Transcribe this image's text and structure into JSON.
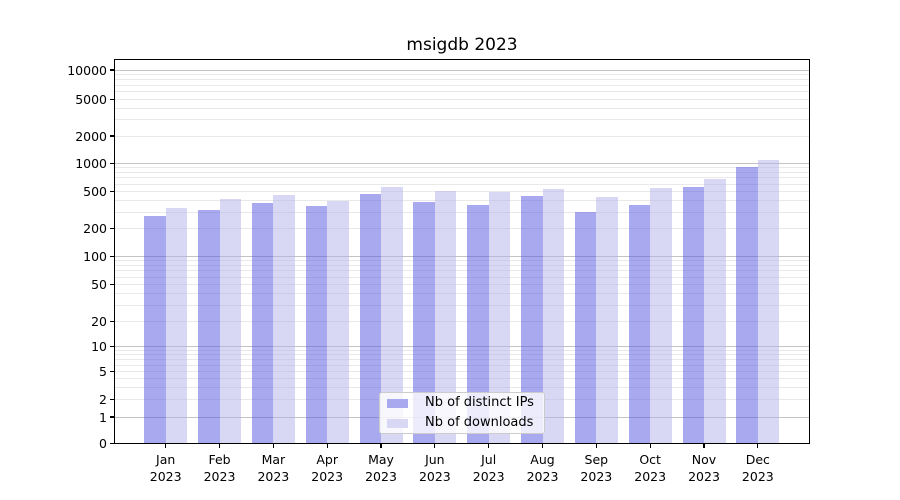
{
  "title": "msigdb 2023",
  "chart_data": {
    "type": "bar",
    "title": "msigdb 2023",
    "months": [
      "Jan",
      "Feb",
      "Mar",
      "Apr",
      "May",
      "Jun",
      "Jul",
      "Aug",
      "Sep",
      "Oct",
      "Nov",
      "Dec"
    ],
    "year": "2023",
    "series": [
      {
        "name": "Nb of distinct IPs",
        "color": "#a9a9ef",
        "values": [
          270,
          313,
          372,
          350,
          470,
          382,
          360,
          450,
          303,
          360,
          557,
          920
        ]
      },
      {
        "name": "Nb of downloads",
        "color": "#d8d8f5",
        "values": [
          335,
          412,
          453,
          398,
          557,
          508,
          492,
          530,
          432,
          548,
          678,
          1100
        ]
      }
    ],
    "yscale": "symlog",
    "y_ticks": [
      0,
      1,
      2,
      5,
      10,
      20,
      50,
      100,
      200,
      500,
      1000,
      2000,
      5000,
      10000
    ],
    "ylim": [
      0,
      13000
    ],
    "xlabel": "",
    "ylabel": "",
    "grid": true,
    "legend_position": "lower center"
  }
}
